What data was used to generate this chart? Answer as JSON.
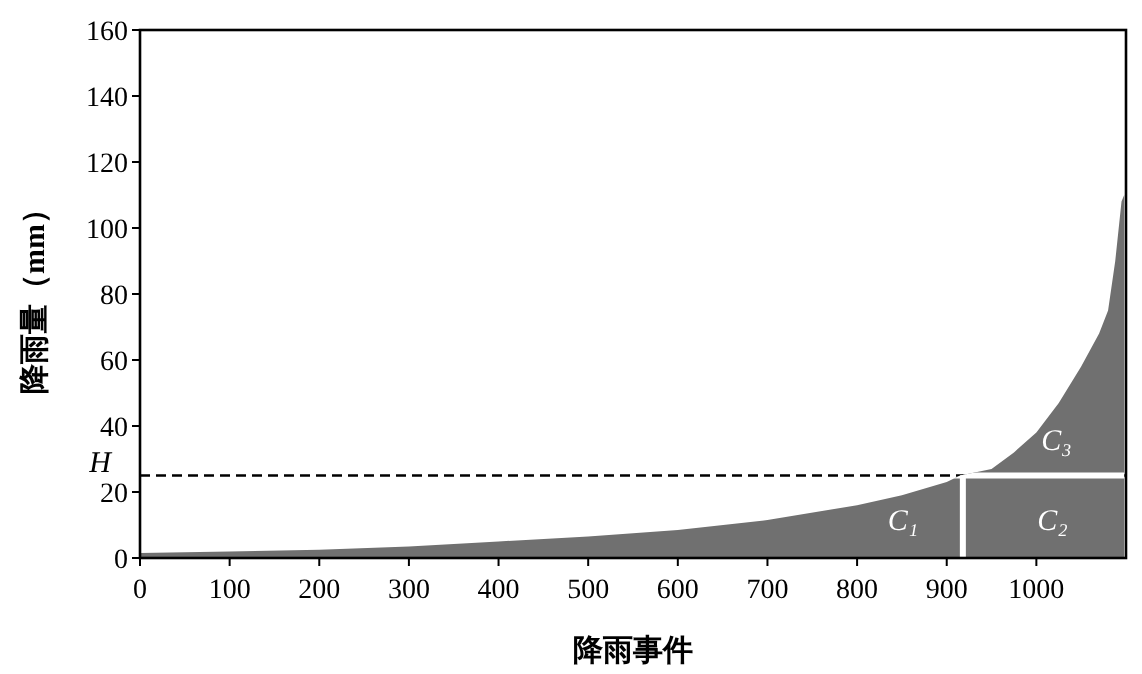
{
  "chart_data": {
    "type": "area",
    "xlabel": "降雨事件",
    "ylabel": "降雨量（mm）",
    "x": [
      0,
      100,
      200,
      300,
      400,
      500,
      600,
      700,
      800,
      850,
      900,
      915,
      950,
      975,
      1000,
      1025,
      1050,
      1070,
      1080,
      1088,
      1095,
      1098
    ],
    "series": [
      {
        "color": "#707070",
        "values": [
          1.5,
          2,
          2.5,
          3.5,
          5,
          6.5,
          8.5,
          11.5,
          16,
          19,
          23,
          25,
          27,
          32,
          38,
          47,
          58,
          68,
          75,
          90,
          108,
          110
        ]
      }
    ],
    "xlim": [
      0,
      1100
    ],
    "ylim": [
      0,
      160
    ],
    "xticks": [
      0,
      100,
      200,
      300,
      400,
      500,
      600,
      700,
      800,
      900,
      1000
    ],
    "yticks": [
      0,
      20,
      40,
      60,
      80,
      100,
      120,
      140,
      160
    ],
    "grid": false,
    "ref_lines": [
      {
        "axis": "y",
        "value": 25,
        "label": "H",
        "color": "#000000",
        "line_style": "dashed"
      },
      {
        "axis": "y",
        "value": 25,
        "color": "#ffffff",
        "line_style": "solid"
      },
      {
        "axis": "x",
        "value": 918,
        "color": "#ffffff",
        "line_style": "solid"
      }
    ],
    "annotations": [
      "C₁",
      "C₂",
      "C₃"
    ]
  }
}
